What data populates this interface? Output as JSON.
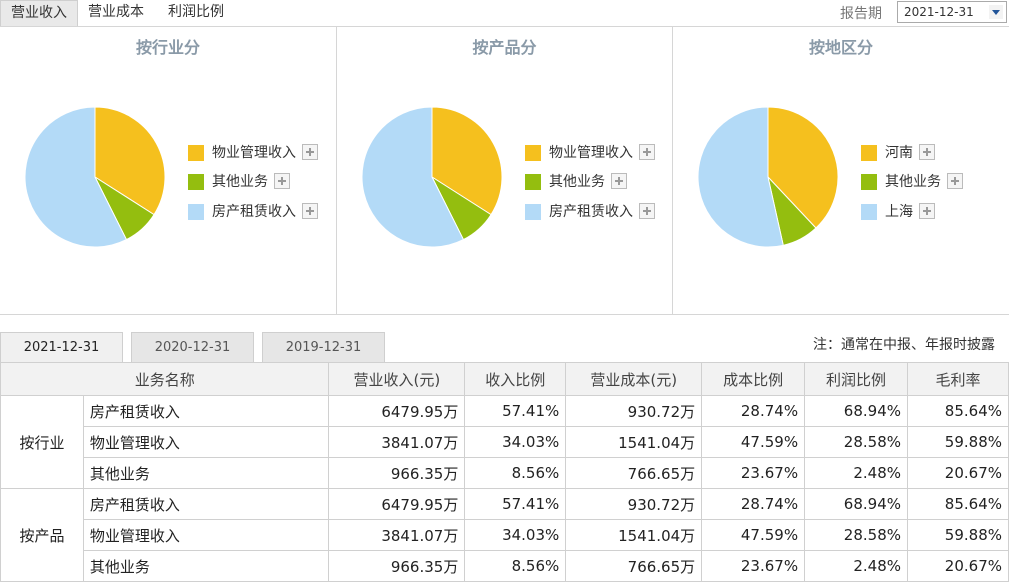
{
  "tabs": [
    "营业收入",
    "营业成本",
    "利润比例"
  ],
  "report_period": {
    "label": "报告期",
    "value": "2021-12-31"
  },
  "colors": {
    "yellow": "#f5c01e",
    "green": "#94be0f",
    "blue": "#b3daf7"
  },
  "chart_data": [
    {
      "type": "pie",
      "title": "按行业分",
      "categories": [
        "物业管理收入",
        "其他业务",
        "房产租赁收入"
      ],
      "values": [
        34.03,
        8.56,
        57.41
      ],
      "colors": [
        "#f5c01e",
        "#94be0f",
        "#b3daf7"
      ],
      "legend": "right"
    },
    {
      "type": "pie",
      "title": "按产品分",
      "categories": [
        "物业管理收入",
        "其他业务",
        "房产租赁收入"
      ],
      "values": [
        34.03,
        8.56,
        57.41
      ],
      "colors": [
        "#f5c01e",
        "#94be0f",
        "#b3daf7"
      ],
      "legend": "right"
    },
    {
      "type": "pie",
      "title": "按地区分",
      "categories": [
        "河南",
        "其他业务",
        "上海"
      ],
      "values": [
        38.0,
        8.5,
        53.5
      ],
      "colors": [
        "#f5c01e",
        "#94be0f",
        "#b3daf7"
      ],
      "legend": "right"
    }
  ],
  "date_tabs": [
    "2021-12-31",
    "2020-12-31",
    "2019-12-31"
  ],
  "note": "注：通常在中报、年报时披露",
  "table": {
    "headers": [
      "业务名称",
      "营业收入(元)",
      "收入比例",
      "营业成本(元)",
      "成本比例",
      "利润比例",
      "毛利率"
    ],
    "groups": [
      {
        "name": "按行业",
        "rows": [
          [
            "房产租赁收入",
            "6479.95万",
            "57.41%",
            "930.72万",
            "28.74%",
            "68.94%",
            "85.64%"
          ],
          [
            "物业管理收入",
            "3841.07万",
            "34.03%",
            "1541.04万",
            "47.59%",
            "28.58%",
            "59.88%"
          ],
          [
            "其他业务",
            "966.35万",
            "8.56%",
            "766.65万",
            "23.67%",
            "2.48%",
            "20.67%"
          ]
        ]
      },
      {
        "name": "按产品",
        "rows": [
          [
            "房产租赁收入",
            "6479.95万",
            "57.41%",
            "930.72万",
            "28.74%",
            "68.94%",
            "85.64%"
          ],
          [
            "物业管理收入",
            "3841.07万",
            "34.03%",
            "1541.04万",
            "47.59%",
            "28.58%",
            "59.88%"
          ],
          [
            "其他业务",
            "966.35万",
            "8.56%",
            "766.65万",
            "23.67%",
            "2.48%",
            "20.67%"
          ]
        ]
      }
    ]
  }
}
